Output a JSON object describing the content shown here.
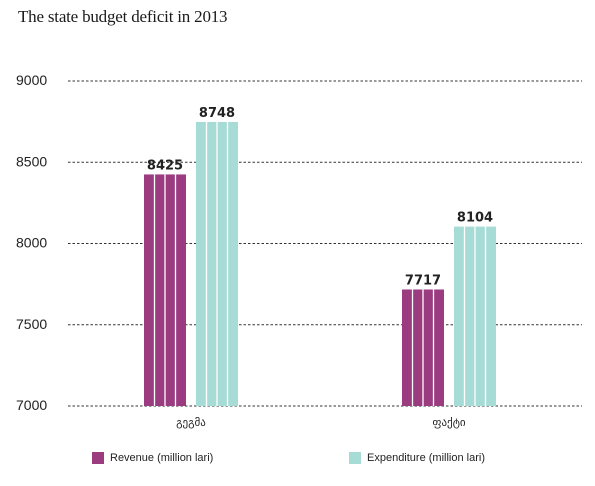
{
  "title": "The state budget deficit in 2013",
  "chart_data": {
    "type": "bar",
    "title": "The state budget deficit in 2013",
    "categories": [
      "გეგმა",
      "ფაქტი"
    ],
    "series": [
      {
        "name": "Revenue (million lari)",
        "values": [
          8425,
          7717
        ],
        "color": "#9b3b80"
      },
      {
        "name": "Expenditure (million lari)",
        "values": [
          8748,
          8104
        ],
        "color": "#a7dcd6"
      }
    ],
    "ylim": [
      7000,
      9000
    ],
    "yticks": [
      7000,
      7500,
      8000,
      8500,
      9000
    ],
    "grid": true,
    "legend": "bottom",
    "xlabel": "",
    "ylabel": ""
  }
}
